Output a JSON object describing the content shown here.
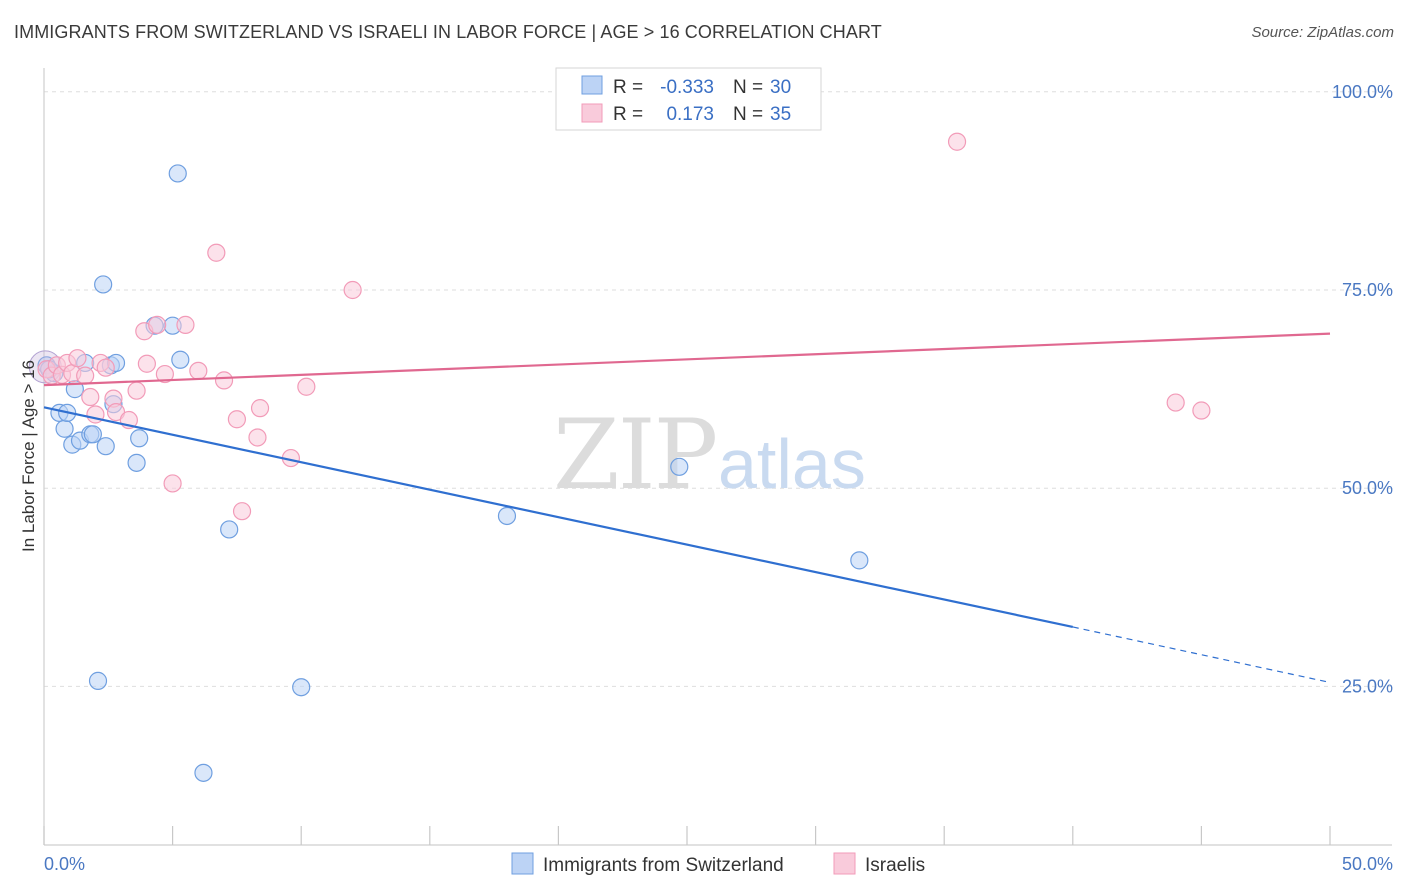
{
  "title": "IMMIGRANTS FROM SWITZERLAND VS ISRAELI IN LABOR FORCE | AGE > 16 CORRELATION CHART",
  "source": "Source: ZipAtlas.com",
  "watermark": {
    "zip": "ZIP",
    "atlas": "atlas"
  },
  "chart_data": {
    "type": "scatter",
    "ylabel": "In Labor Force | Age > 16",
    "xlim": [
      0,
      50
    ],
    "ylim": [
      5,
      103
    ],
    "x_tick_labels": {
      "min": "0.0%",
      "max": "50.0%"
    },
    "y_ticks": [
      {
        "value": 100,
        "label": "100.0%"
      },
      {
        "value": 75,
        "label": "75.0%"
      },
      {
        "value": 50,
        "label": "50.0%"
      },
      {
        "value": 25,
        "label": "25.0%"
      }
    ],
    "grid": "horizontal dashed",
    "legend_position": "top-center",
    "series": [
      {
        "name": "Immigrants from Switzerland",
        "color": "#6f9fe0",
        "line_color": "#2f6fd0",
        "r_label": "R =",
        "r_value": "-0.333",
        "n_label": "N =",
        "n_value": "30",
        "trend": {
          "x0": 0,
          "y0": 60.2,
          "x1": 40,
          "y1": 32.5,
          "x_dash_end": 50,
          "y_dash_end": 25.5
        },
        "points": [
          [
            0.1,
            65.5
          ],
          [
            0.4,
            64.5
          ],
          [
            0.6,
            59.5
          ],
          [
            0.8,
            57.5
          ],
          [
            0.9,
            59.5
          ],
          [
            1.1,
            55.5
          ],
          [
            1.2,
            62.5
          ],
          [
            1.4,
            56.0
          ],
          [
            1.6,
            65.8
          ],
          [
            1.8,
            56.8
          ],
          [
            1.9,
            56.8
          ],
          [
            2.1,
            25.7
          ],
          [
            2.3,
            75.7
          ],
          [
            2.4,
            55.3
          ],
          [
            2.6,
            65.5
          ],
          [
            2.7,
            60.6
          ],
          [
            2.8,
            65.8
          ],
          [
            3.6,
            53.2
          ],
          [
            3.7,
            56.3
          ],
          [
            4.3,
            70.5
          ],
          [
            5.0,
            70.5
          ],
          [
            5.2,
            89.7
          ],
          [
            5.3,
            66.2
          ],
          [
            6.2,
            14.1
          ],
          [
            7.2,
            44.8
          ],
          [
            10.0,
            24.9
          ],
          [
            18.0,
            46.5
          ],
          [
            24.7,
            52.7
          ],
          [
            31.7,
            40.9
          ],
          [
            0.2,
            65.0
          ]
        ]
      },
      {
        "name": "Israelis",
        "color": "#f29bb8",
        "line_color": "#e06890",
        "r_label": "R =",
        "r_value": "0.173",
        "n_label": "N =",
        "n_value": "35",
        "trend": {
          "x0": 0,
          "y0": 63.0,
          "x1": 50,
          "y1": 69.5
        },
        "points": [
          [
            0.1,
            65.0
          ],
          [
            0.3,
            64.2
          ],
          [
            0.5,
            65.5
          ],
          [
            0.7,
            64.3
          ],
          [
            0.9,
            65.8
          ],
          [
            1.1,
            64.5
          ],
          [
            1.3,
            66.4
          ],
          [
            1.6,
            64.2
          ],
          [
            1.8,
            61.5
          ],
          [
            2.0,
            59.3
          ],
          [
            2.2,
            65.8
          ],
          [
            2.4,
            65.2
          ],
          [
            2.7,
            61.3
          ],
          [
            2.8,
            59.6
          ],
          [
            3.3,
            58.6
          ],
          [
            3.6,
            62.3
          ],
          [
            3.9,
            69.8
          ],
          [
            4.0,
            65.7
          ],
          [
            4.4,
            70.6
          ],
          [
            4.7,
            64.4
          ],
          [
            5.0,
            50.6
          ],
          [
            5.5,
            70.6
          ],
          [
            6.0,
            64.8
          ],
          [
            6.7,
            79.7
          ],
          [
            7.0,
            63.6
          ],
          [
            7.5,
            58.7
          ],
          [
            7.7,
            47.1
          ],
          [
            8.3,
            56.4
          ],
          [
            8.4,
            60.1
          ],
          [
            9.6,
            53.8
          ],
          [
            10.2,
            62.8
          ],
          [
            12.0,
            75.0
          ],
          [
            35.5,
            93.7
          ],
          [
            44.0,
            60.8
          ],
          [
            45.0,
            59.8
          ]
        ]
      }
    ]
  }
}
